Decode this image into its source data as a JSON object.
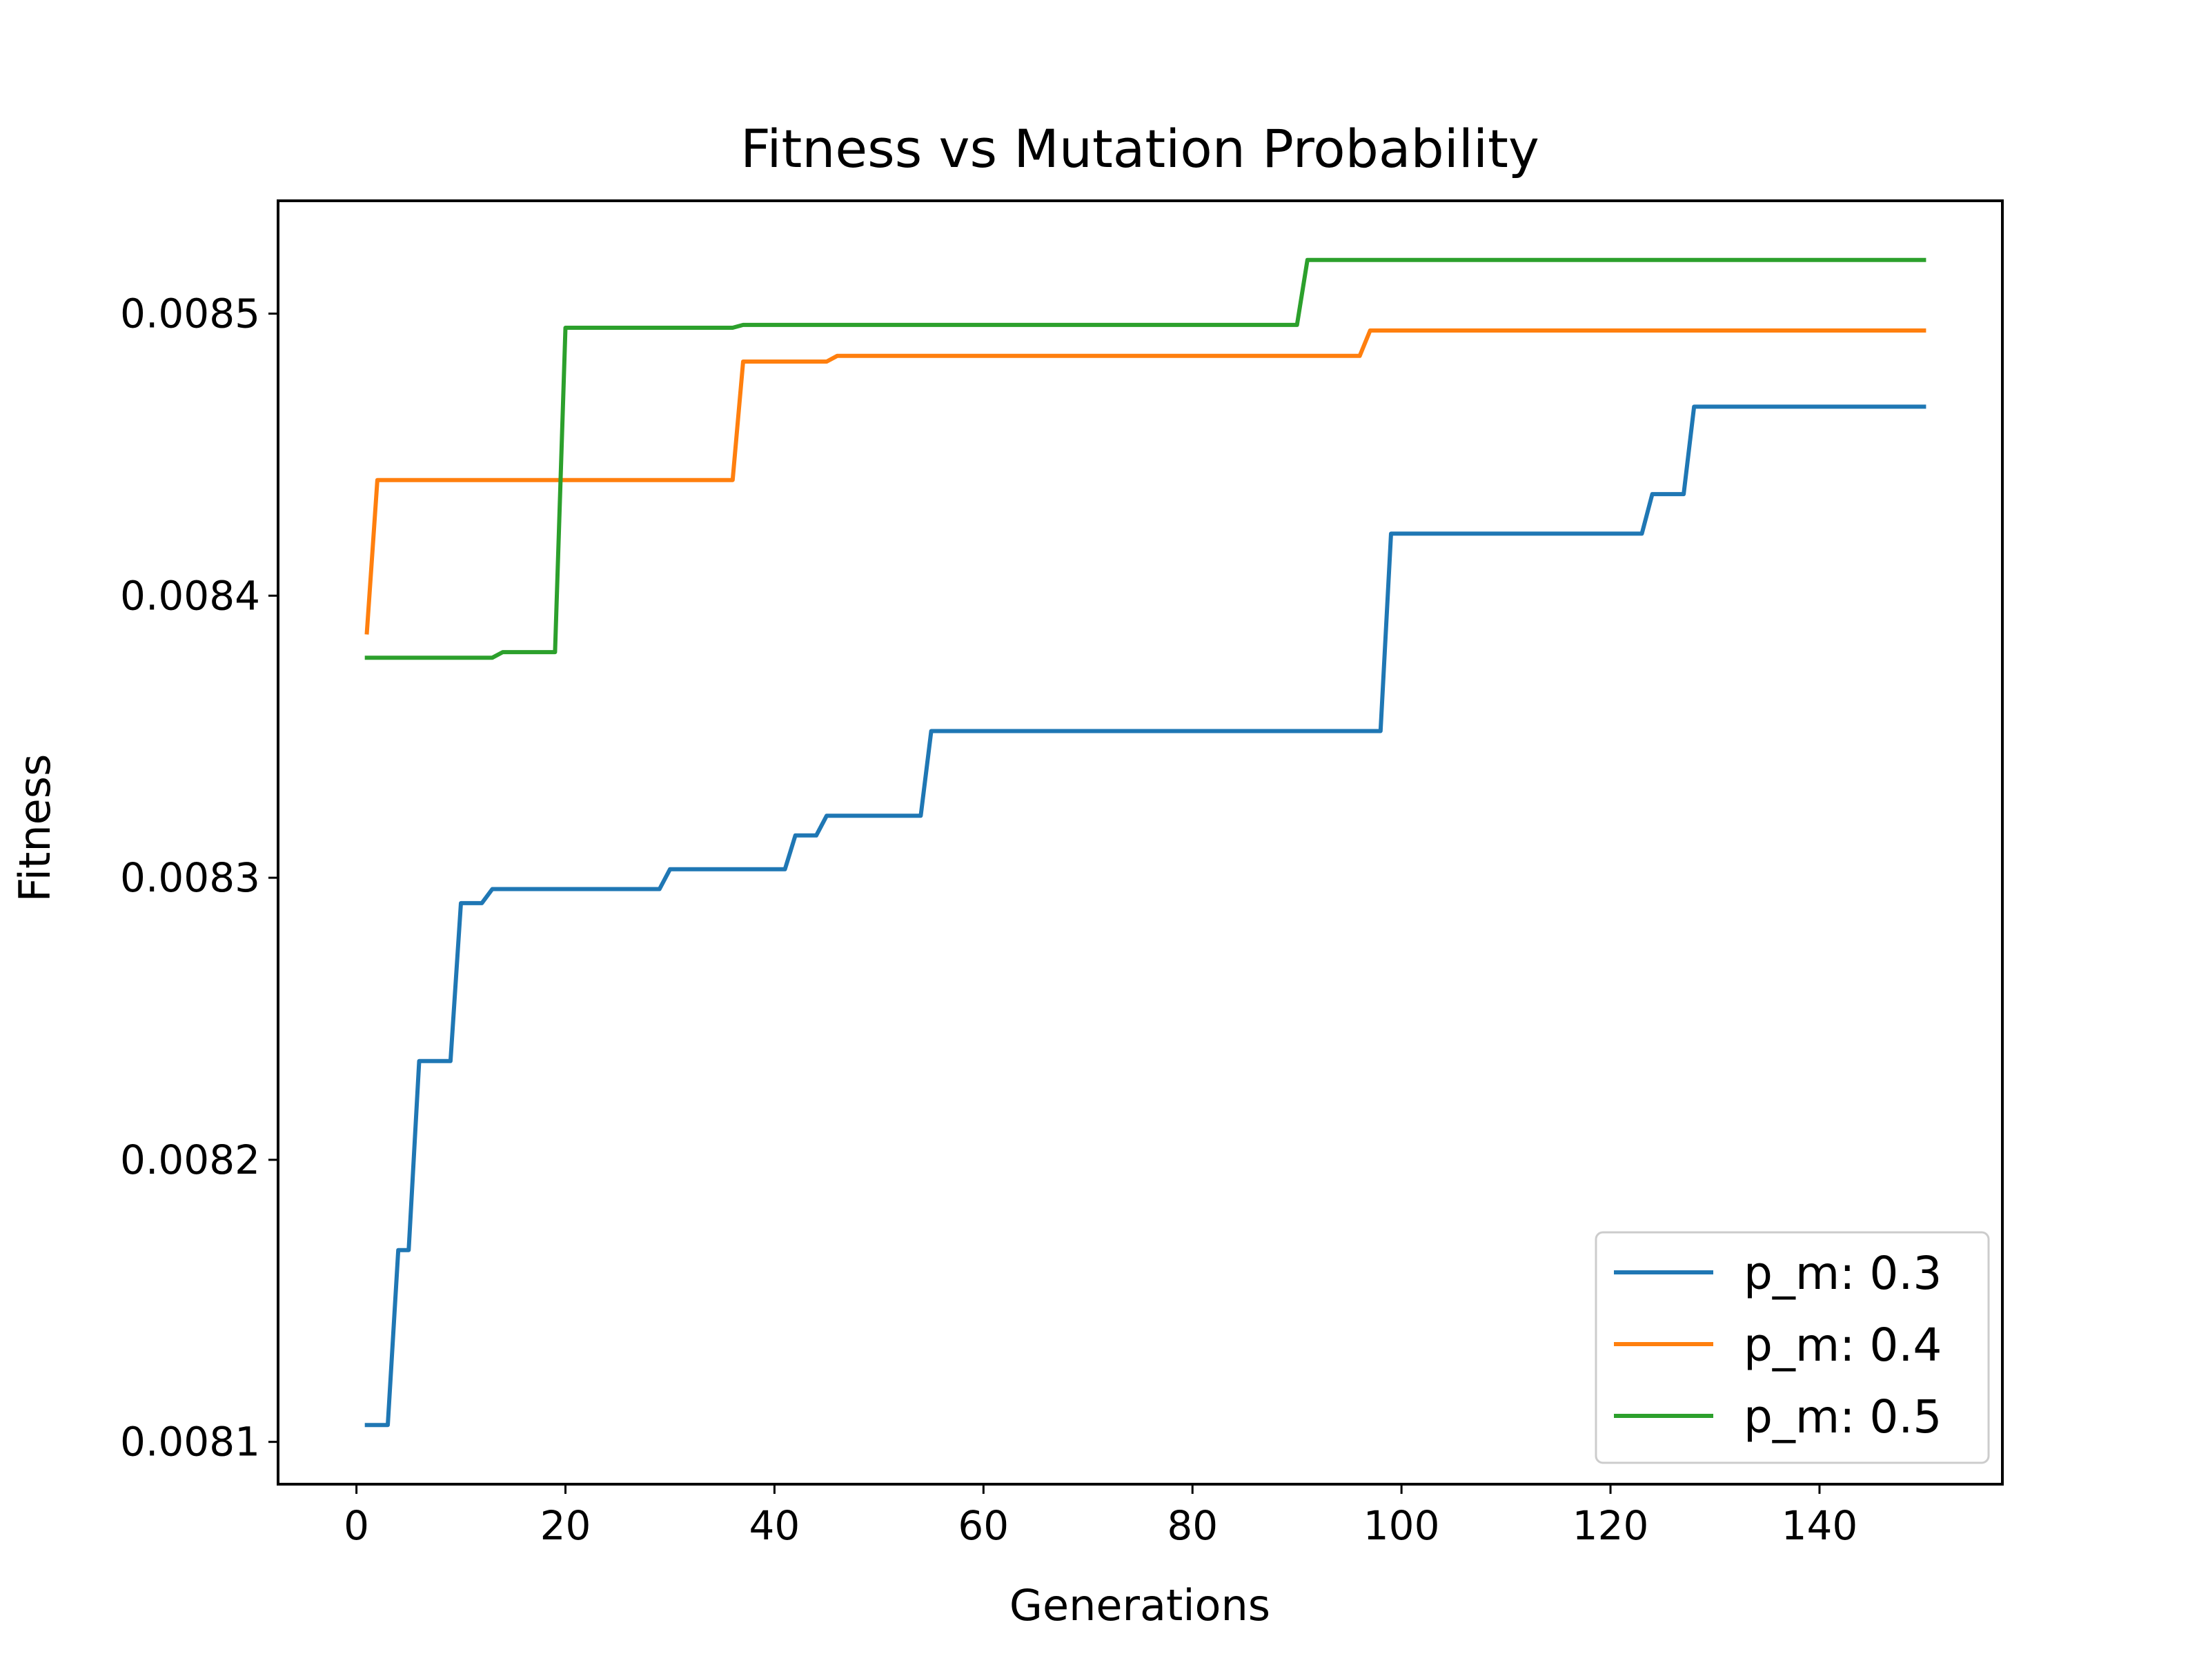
{
  "chart_data": {
    "type": "line",
    "title": "Fitness vs Mutation Probability",
    "xlabel": "Generations",
    "ylabel": "Fitness",
    "xlim": [
      -7.5,
      157.5
    ],
    "ylim": [
      0.008085,
      0.00854
    ],
    "xticks": [
      0,
      20,
      40,
      60,
      80,
      100,
      120,
      140
    ],
    "xtick_labels": [
      "0",
      "20",
      "40",
      "60",
      "80",
      "100",
      "120",
      "140"
    ],
    "yticks": [
      0.0081,
      0.0082,
      0.0083,
      0.0084,
      0.0085
    ],
    "ytick_labels": [
      "0.0081",
      "0.0082",
      "0.0083",
      "0.0084",
      "0.0085"
    ],
    "grid": false,
    "legend_position": "lower-right",
    "series": [
      {
        "name": "p_m: 0.3",
        "color": "#1f77b4",
        "x": [
          1,
          3,
          4,
          5,
          6,
          9,
          10,
          12,
          13,
          29,
          30,
          41,
          42,
          44,
          45,
          54,
          55,
          98,
          99,
          123,
          124,
          127,
          128,
          150
        ],
        "y": [
          0.008106,
          0.008106,
          0.008168,
          0.008168,
          0.008235,
          0.008235,
          0.008291,
          0.008291,
          0.008296,
          0.008296,
          0.008303,
          0.008303,
          0.008315,
          0.008315,
          0.008322,
          0.008322,
          0.008352,
          0.008352,
          0.008422,
          0.008422,
          0.008436,
          0.008436,
          0.008467,
          0.008467
        ]
      },
      {
        "name": "p_m: 0.4",
        "color": "#ff7f0e",
        "x": [
          1,
          2,
          36,
          37,
          45,
          46,
          96,
          97,
          150
        ],
        "y": [
          0.008387,
          0.008441,
          0.008441,
          0.008483,
          0.008483,
          0.008485,
          0.008485,
          0.008494,
          0.008494
        ]
      },
      {
        "name": "p_m: 0.5",
        "color": "#2ca02c",
        "x": [
          1,
          13,
          14,
          19,
          20,
          36,
          37,
          90,
          91,
          150
        ],
        "y": [
          0.008378,
          0.008378,
          0.00838,
          0.00838,
          0.008495,
          0.008495,
          0.008496,
          0.008496,
          0.008519,
          0.008519
        ]
      }
    ]
  }
}
